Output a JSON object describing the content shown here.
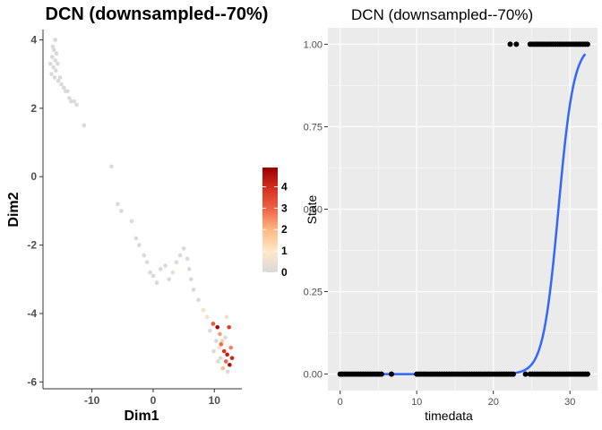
{
  "chart_data": [
    {
      "type": "scatter",
      "title": "DCN (downsampled--70%)",
      "xlabel": "Dim1",
      "ylabel": "Dim2",
      "xlim": [
        -18,
        14.5
      ],
      "ylim": [
        -6.2,
        4.3
      ],
      "xticks": [
        -10,
        0,
        10
      ],
      "xtick_labels": [
        "-10",
        "0",
        "10"
      ],
      "yticks": [
        -6,
        -4,
        -2,
        0,
        2,
        4
      ],
      "ytick_labels": [
        "-6",
        "-4",
        "-2",
        "0",
        "2",
        "4"
      ],
      "grid": false,
      "legend": {
        "placement": "right",
        "range": [
          0,
          4.9
        ],
        "ticks": [
          0,
          1,
          2,
          3,
          4
        ],
        "tick_labels": [
          "0",
          "1",
          "2",
          "3",
          "4"
        ],
        "colors": [
          "#d9d9d9",
          "#fee8c8",
          "#fdbb84",
          "#ef6548",
          "#d7301f",
          "#990000"
        ]
      },
      "points": [
        {
          "x": -16.2,
          "y": 3.7,
          "v": 0
        },
        {
          "x": -16.5,
          "y": 3.5,
          "v": 0
        },
        {
          "x": -16.0,
          "y": 3.4,
          "v": 0
        },
        {
          "x": -16.8,
          "y": 3.3,
          "v": 0
        },
        {
          "x": -15.8,
          "y": 3.6,
          "v": 0
        },
        {
          "x": -16.3,
          "y": 3.2,
          "v": 0
        },
        {
          "x": -16.6,
          "y": 3.0,
          "v": 0
        },
        {
          "x": -15.9,
          "y": 3.1,
          "v": 0
        },
        {
          "x": -16.1,
          "y": 2.9,
          "v": 0
        },
        {
          "x": -16.4,
          "y": 3.8,
          "v": 0
        },
        {
          "x": -15.6,
          "y": 3.3,
          "v": 0
        },
        {
          "x": -16.0,
          "y": 4.0,
          "v": 0
        },
        {
          "x": -15.5,
          "y": 2.8,
          "v": 0
        },
        {
          "x": -15.2,
          "y": 2.9,
          "v": 0
        },
        {
          "x": -15.0,
          "y": 2.7,
          "v": 0
        },
        {
          "x": -14.6,
          "y": 2.6,
          "v": 0
        },
        {
          "x": -14.3,
          "y": 2.5,
          "v": 0
        },
        {
          "x": -14.0,
          "y": 2.5,
          "v": 0
        },
        {
          "x": -13.7,
          "y": 2.3,
          "v": 0
        },
        {
          "x": -13.4,
          "y": 2.2,
          "v": 0
        },
        {
          "x": -12.9,
          "y": 2.2,
          "v": 0
        },
        {
          "x": -12.5,
          "y": 2.1,
          "v": 0
        },
        {
          "x": -11.3,
          "y": 1.5,
          "v": 0
        },
        {
          "x": -6.8,
          "y": 0.3,
          "v": 0
        },
        {
          "x": -5.8,
          "y": -0.8,
          "v": 0
        },
        {
          "x": -5.2,
          "y": -1.0,
          "v": 0
        },
        {
          "x": -3.5,
          "y": -1.3,
          "v": 0
        },
        {
          "x": -2.8,
          "y": -1.8,
          "v": 0
        },
        {
          "x": -2.3,
          "y": -2.0,
          "v": 0
        },
        {
          "x": -1.5,
          "y": -2.3,
          "v": 0
        },
        {
          "x": -1.0,
          "y": -2.5,
          "v": 0
        },
        {
          "x": -0.5,
          "y": -2.8,
          "v": 0
        },
        {
          "x": 0.0,
          "y": -2.9,
          "v": 0
        },
        {
          "x": 0.6,
          "y": -3.1,
          "v": 0
        },
        {
          "x": 1.2,
          "y": -2.7,
          "v": 0
        },
        {
          "x": 2.0,
          "y": -2.6,
          "v": 0
        },
        {
          "x": 2.6,
          "y": -3.0,
          "v": 0
        },
        {
          "x": 3.2,
          "y": -2.8,
          "v": 0.4
        },
        {
          "x": 3.8,
          "y": -2.5,
          "v": 0
        },
        {
          "x": 4.4,
          "y": -2.3,
          "v": 0
        },
        {
          "x": 5.0,
          "y": -2.1,
          "v": 0
        },
        {
          "x": 5.6,
          "y": -2.4,
          "v": 0
        },
        {
          "x": 5.9,
          "y": -2.7,
          "v": 0
        },
        {
          "x": 6.2,
          "y": -3.0,
          "v": 0
        },
        {
          "x": 6.6,
          "y": -3.3,
          "v": 0
        },
        {
          "x": 7.4,
          "y": -3.6,
          "v": 0
        },
        {
          "x": 8.2,
          "y": -3.9,
          "v": 1.2
        },
        {
          "x": 8.8,
          "y": -4.1,
          "v": 0.6
        },
        {
          "x": 9.3,
          "y": -4.5,
          "v": 0
        },
        {
          "x": 9.8,
          "y": -4.3,
          "v": 3.2
        },
        {
          "x": 10.5,
          "y": -4.4,
          "v": 4.8
        },
        {
          "x": 10.9,
          "y": -4.6,
          "v": 2.3
        },
        {
          "x": 11.3,
          "y": -4.8,
          "v": 1.5
        },
        {
          "x": 11.8,
          "y": -4.7,
          "v": 0
        },
        {
          "x": 12.4,
          "y": -4.4,
          "v": 3.7
        },
        {
          "x": 10.8,
          "y": -5.0,
          "v": 0.8
        },
        {
          "x": 11.6,
          "y": -5.1,
          "v": 3.9
        },
        {
          "x": 12.1,
          "y": -5.2,
          "v": 4.3
        },
        {
          "x": 12.7,
          "y": -5.0,
          "v": 2.6
        },
        {
          "x": 11.0,
          "y": -5.3,
          "v": 0
        },
        {
          "x": 11.9,
          "y": -5.4,
          "v": 3.0
        },
        {
          "x": 12.5,
          "y": -5.5,
          "v": 4.6
        },
        {
          "x": 11.4,
          "y": -5.6,
          "v": 1.9
        },
        {
          "x": 12.2,
          "y": -5.7,
          "v": 0
        },
        {
          "x": 11.1,
          "y": -4.9,
          "v": 2.9
        },
        {
          "x": 12.9,
          "y": -5.3,
          "v": 4.1
        },
        {
          "x": 10.3,
          "y": -4.8,
          "v": 0
        },
        {
          "x": 9.9,
          "y": -5.1,
          "v": 0
        },
        {
          "x": 10.6,
          "y": -5.4,
          "v": 0
        },
        {
          "x": 12.0,
          "y": -4.1,
          "v": 0.5
        }
      ]
    },
    {
      "type": "scatter",
      "title": "DCN (downsampled--70%)",
      "xlabel": "timedata",
      "ylabel": "State",
      "xlim": [
        -1.6,
        33.6
      ],
      "ylim": [
        -0.05,
        1.05
      ],
      "xticks": [
        0,
        10,
        20,
        30
      ],
      "xtick_labels": [
        "0",
        "10",
        "20",
        "30"
      ],
      "yticks": [
        0,
        0.25,
        0.5,
        0.75,
        1
      ],
      "ytick_labels": [
        "0.00",
        "0.25",
        "0.50",
        "0.75",
        "1.00"
      ],
      "grid": true,
      "points_state0_x": [
        0.0,
        0.3,
        0.6,
        0.9,
        1.2,
        1.5,
        1.8,
        2.1,
        2.4,
        2.7,
        3.0,
        3.3,
        3.6,
        3.9,
        4.2,
        4.5,
        4.8,
        5.1,
        5.4,
        6.7,
        10.0,
        10.3,
        10.6,
        10.9,
        11.2,
        11.5,
        11.8,
        12.1,
        12.4,
        12.7,
        13.0,
        13.3,
        13.6,
        13.9,
        14.2,
        14.5,
        14.8,
        15.1,
        15.4,
        15.7,
        16.0,
        16.3,
        16.6,
        16.9,
        17.2,
        17.5,
        17.8,
        18.1,
        18.4,
        18.7,
        19.0,
        19.3,
        19.6,
        19.9,
        20.2,
        20.5,
        20.8,
        21.1,
        21.4,
        21.7,
        22.0,
        22.3,
        22.6,
        24.2,
        24.8,
        25.1,
        25.4,
        25.7,
        26.0,
        26.3,
        26.6,
        26.9,
        27.2,
        27.5,
        27.8,
        28.1,
        28.4,
        28.7,
        29.0,
        29.3,
        29.6,
        29.9,
        30.2,
        30.5,
        30.8,
        31.1,
        31.4,
        31.7,
        32.0,
        32.3
      ],
      "points_state1_x": [
        22.2,
        23.0,
        24.8,
        25.1,
        25.4,
        25.7,
        26.0,
        26.3,
        26.6,
        26.9,
        27.2,
        27.5,
        27.8,
        28.1,
        28.4,
        28.7,
        29.0,
        29.3,
        29.6,
        29.9,
        30.2,
        30.5,
        30.8,
        31.1,
        31.4,
        31.7,
        32.0,
        32.3
      ],
      "fit": {
        "type": "logistic",
        "midpoint": 28.5,
        "slope": 1.0,
        "x_range": [
          0,
          32
        ]
      }
    }
  ]
}
